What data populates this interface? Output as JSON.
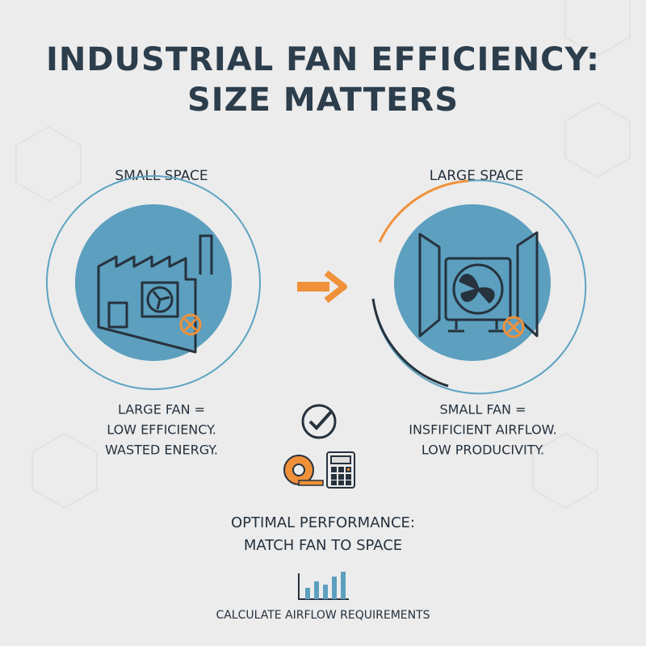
{
  "title": {
    "line1": "INDUSTRIAL FAN EFFICIENCY:",
    "line2": "SIZE MATTERS"
  },
  "left": {
    "label": "SMALL SPACE",
    "caption": [
      "LARGE FAN =",
      "LOW EFFICIENCY.",
      "WASTED ENERGY."
    ]
  },
  "right": {
    "label": "LARGE SPACE",
    "caption": [
      "SMALL FAN =",
      "INSFIFICIENT AIRFLOW.",
      "LOW PRODUCIVITY."
    ]
  },
  "conclusion": [
    "OPTIMAL PERFORMANCE:",
    "MATCH FAN TO SPACE"
  ],
  "footer": "CALCULATE AIRFLOW REQUIREMENTS"
}
